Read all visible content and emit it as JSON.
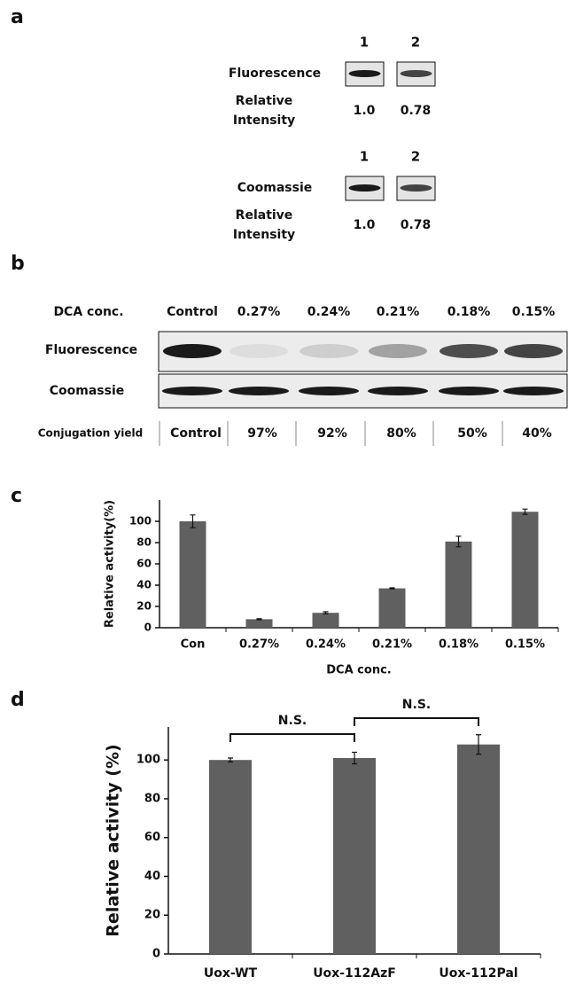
{
  "panel_a": {
    "label": "a",
    "groups": [
      {
        "lanes": [
          "1",
          "2"
        ],
        "stain": "Fluorescence",
        "measure": "Relative Intensity",
        "values": [
          "1.0",
          "0.78"
        ]
      },
      {
        "lanes": [
          "1",
          "2"
        ],
        "stain": "Coomassie",
        "measure": "Relative Intensity",
        "values": [
          "1.0",
          "0.78"
        ]
      }
    ]
  },
  "panel_b": {
    "label": "b",
    "row_labels": {
      "conc": "DCA conc.",
      "fluorescence": "Fluorescence",
      "coomassie": "Coomassie",
      "yield": "Conjugation  yield"
    },
    "conditions": [
      "Control",
      "0.27%",
      "0.24%",
      "0.21%",
      "0.18%",
      "0.15%"
    ],
    "yields": [
      "Control",
      "97%",
      "92%",
      "80%",
      "50%",
      "40%"
    ]
  },
  "chart_data": [
    {
      "type": "bar",
      "label": "c",
      "x_label": "DCA conc.",
      "y_label": "Relative activity(%)",
      "categories": [
        "Con",
        "0.27%",
        "0.24%",
        "0.21%",
        "0.18%",
        "0.15%"
      ],
      "values": [
        100,
        8,
        14,
        37,
        81,
        109
      ],
      "errors": [
        6,
        0.5,
        1,
        0.5,
        5,
        2.5
      ],
      "color": "#606060",
      "ylim": [
        0,
        120
      ],
      "yticks": [
        0,
        20,
        40,
        60,
        80,
        100
      ]
    },
    {
      "type": "bar",
      "label": "d",
      "y_label": "Relative activity (%)",
      "categories": [
        "Uox-WT",
        "Uox-112AzF",
        "Uox-112Pal"
      ],
      "values": [
        100,
        101,
        108
      ],
      "errors": [
        1,
        3,
        5
      ],
      "color": "#606060",
      "ylim": [
        0,
        117
      ],
      "yticks": [
        0,
        20,
        40,
        60,
        80,
        100
      ],
      "annotations": [
        "N.S.",
        "N.S."
      ]
    }
  ]
}
